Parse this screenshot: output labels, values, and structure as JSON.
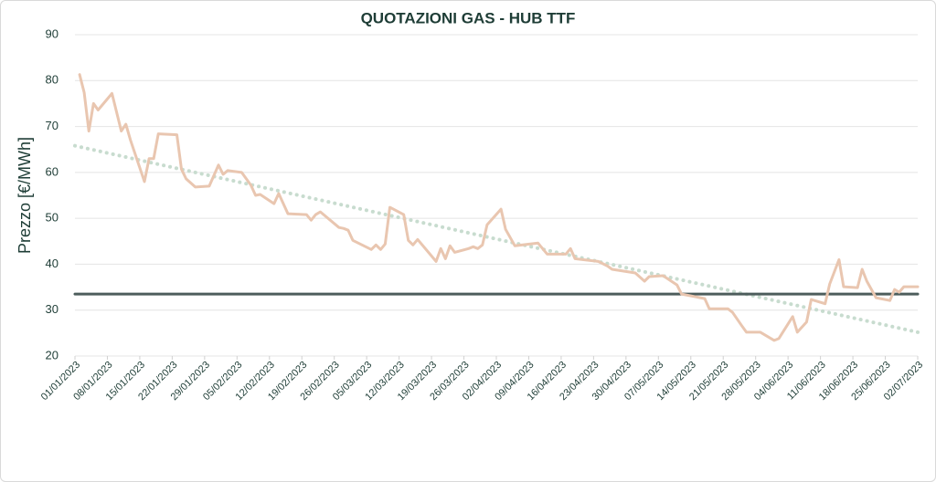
{
  "chart_data": {
    "type": "line",
    "title": "QUOTAZIONI GAS - HUB TTF",
    "y_label": "Prezzo [€/MWh]",
    "ylim": [
      20,
      90
    ],
    "yticks": [
      20,
      30,
      40,
      50,
      60,
      70,
      80,
      90
    ],
    "grid": true,
    "xlim": [
      "01/01/2023",
      "02/07/2023"
    ],
    "xticks": [
      "01/01/2023",
      "08/01/2023",
      "15/01/2023",
      "22/01/2023",
      "29/01/2023",
      "05/02/2023",
      "12/02/2023",
      "19/02/2023",
      "26/02/2023",
      "05/03/2023",
      "12/03/2023",
      "19/03/2023",
      "26/03/2023",
      "02/04/2023",
      "09/04/2023",
      "16/04/2023",
      "23/04/2023",
      "30/04/2023",
      "07/05/2023",
      "14/05/2023",
      "21/05/2023",
      "28/05/2023",
      "04/06/2023",
      "11/06/2023",
      "18/06/2023",
      "25/06/2023",
      "02/07/2023"
    ],
    "series": [
      {
        "color": "#c8dccf",
        "style": "dotted",
        "x": [
          "01/01/2023",
          "02/07/2023"
        ],
        "values": [
          65.8,
          25.2
        ]
      },
      {
        "color": "#4d5d5c",
        "style": "solid",
        "x": [
          "01/01/2023",
          "02/07/2023"
        ],
        "values": [
          33.5,
          33.5
        ]
      },
      {
        "color": "#e9c6b0",
        "style": "solid",
        "x": [
          "02/01/2023",
          "03/01/2023",
          "04/01/2023",
          "05/01/2023",
          "06/01/2023",
          "09/01/2023",
          "11/01/2023",
          "12/01/2023",
          "13/01/2023",
          "16/01/2023",
          "17/01/2023",
          "18/01/2023",
          "19/01/2023",
          "23/01/2023",
          "24/01/2023",
          "25/01/2023",
          "27/01/2023",
          "30/01/2023",
          "01/02/2023",
          "02/02/2023",
          "03/02/2023",
          "06/02/2023",
          "08/02/2023",
          "09/02/2023",
          "10/02/2023",
          "13/02/2023",
          "14/02/2023",
          "16/02/2023",
          "20/02/2023",
          "21/02/2023",
          "22/02/2023",
          "23/02/2023",
          "27/02/2023",
          "28/02/2023",
          "01/03/2023",
          "02/03/2023",
          "06/03/2023",
          "07/03/2023",
          "08/03/2023",
          "09/03/2023",
          "10/03/2023",
          "13/03/2023",
          "14/03/2023",
          "15/03/2023",
          "16/03/2023",
          "20/03/2023",
          "21/03/2023",
          "22/03/2023",
          "23/03/2023",
          "24/03/2023",
          "27/03/2023",
          "28/03/2023",
          "29/03/2023",
          "30/03/2023",
          "31/03/2023",
          "03/04/2023",
          "04/04/2023",
          "06/04/2023",
          "11/04/2023",
          "13/04/2023",
          "17/04/2023",
          "18/04/2023",
          "19/04/2023",
          "24/04/2023",
          "26/04/2023",
          "27/04/2023",
          "02/05/2023",
          "04/05/2023",
          "05/05/2023",
          "08/05/2023",
          "11/05/2023",
          "12/05/2023",
          "17/05/2023",
          "18/05/2023",
          "22/05/2023",
          "23/05/2023",
          "25/05/2023",
          "26/05/2023",
          "29/05/2023",
          "01/06/2023",
          "02/06/2023",
          "05/06/2023",
          "06/06/2023",
          "08/06/2023",
          "09/06/2023",
          "12/06/2023",
          "13/06/2023",
          "15/06/2023",
          "16/06/2023",
          "19/06/2023",
          "20/06/2023",
          "21/06/2023",
          "23/06/2023",
          "26/06/2023",
          "27/06/2023",
          "28/06/2023",
          "29/06/2023",
          "02/07/2023"
        ],
        "values": [
          81.3,
          77.4,
          69,
          75,
          73.6,
          77.2,
          69,
          70.5,
          67,
          58,
          63,
          63,
          68.4,
          68.2,
          60.7,
          58.6,
          56.8,
          57,
          61.6,
          59.6,
          60.4,
          60,
          57.2,
          55,
          55.2,
          53.2,
          55.4,
          51,
          50.8,
          49.6,
          50.8,
          51.4,
          48,
          47.8,
          47.4,
          45.2,
          43.2,
          44.2,
          43.2,
          44.4,
          52.4,
          50.8,
          45.2,
          44.2,
          45.4,
          40.6,
          43.4,
          41.2,
          44,
          42.6,
          43.4,
          43.8,
          43.4,
          44.2,
          48.6,
          52,
          47.6,
          44,
          44.6,
          42.2,
          42.2,
          43.4,
          41.2,
          40.6,
          39.6,
          38.9,
          38.1,
          36.3,
          37.3,
          37.5,
          35.5,
          33.5,
          32.5,
          30.3,
          30.3,
          29.5,
          26.6,
          25.2,
          25.2,
          23.4,
          23.8,
          28.6,
          25.2,
          27.4,
          32.3,
          31.4,
          35.7,
          41,
          35.1,
          34.9,
          38.9,
          36.3,
          32.7,
          32.1,
          34.5,
          33.9,
          35.1,
          35.1
        ]
      }
    ]
  }
}
